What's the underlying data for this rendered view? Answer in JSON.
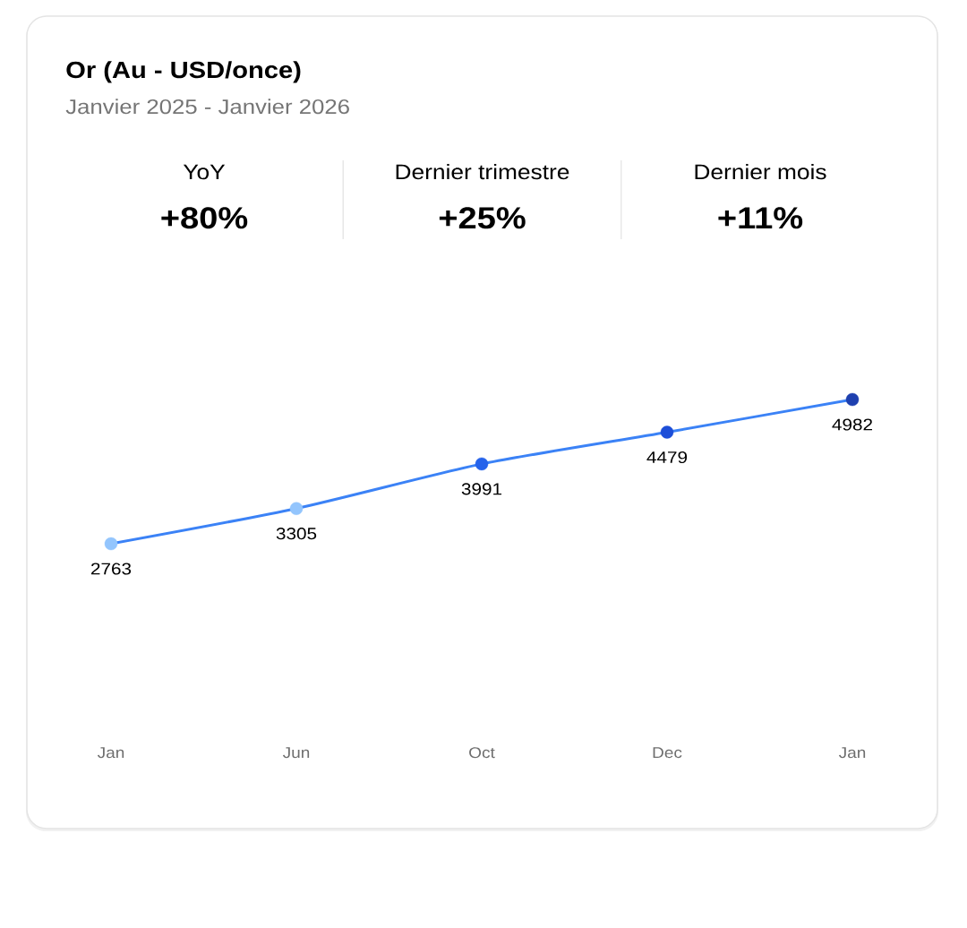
{
  "chart_data": {
    "type": "line",
    "title": "Or (Au - USD/once)",
    "subtitle": "Janvier 2025 - Janvier 2026",
    "annotations": [
      "YoY",
      "+80%",
      "Dernier trimestre",
      "+25%",
      "Dernier mois",
      "+11%"
    ],
    "categories": [
      "Jan",
      "Jun",
      "Oct",
      "Dec",
      "Jan"
    ],
    "values": [
      2763,
      3305,
      3991,
      4479,
      4982
    ],
    "color": "#3b82f6",
    "colors": [
      "#93c5fd",
      "#93c5fd",
      "#2563eb",
      "#1d4ed8",
      "#1e40af"
    ],
    "marker": "circle",
    "data_labels": true,
    "tick_labels": "x"
  }
}
